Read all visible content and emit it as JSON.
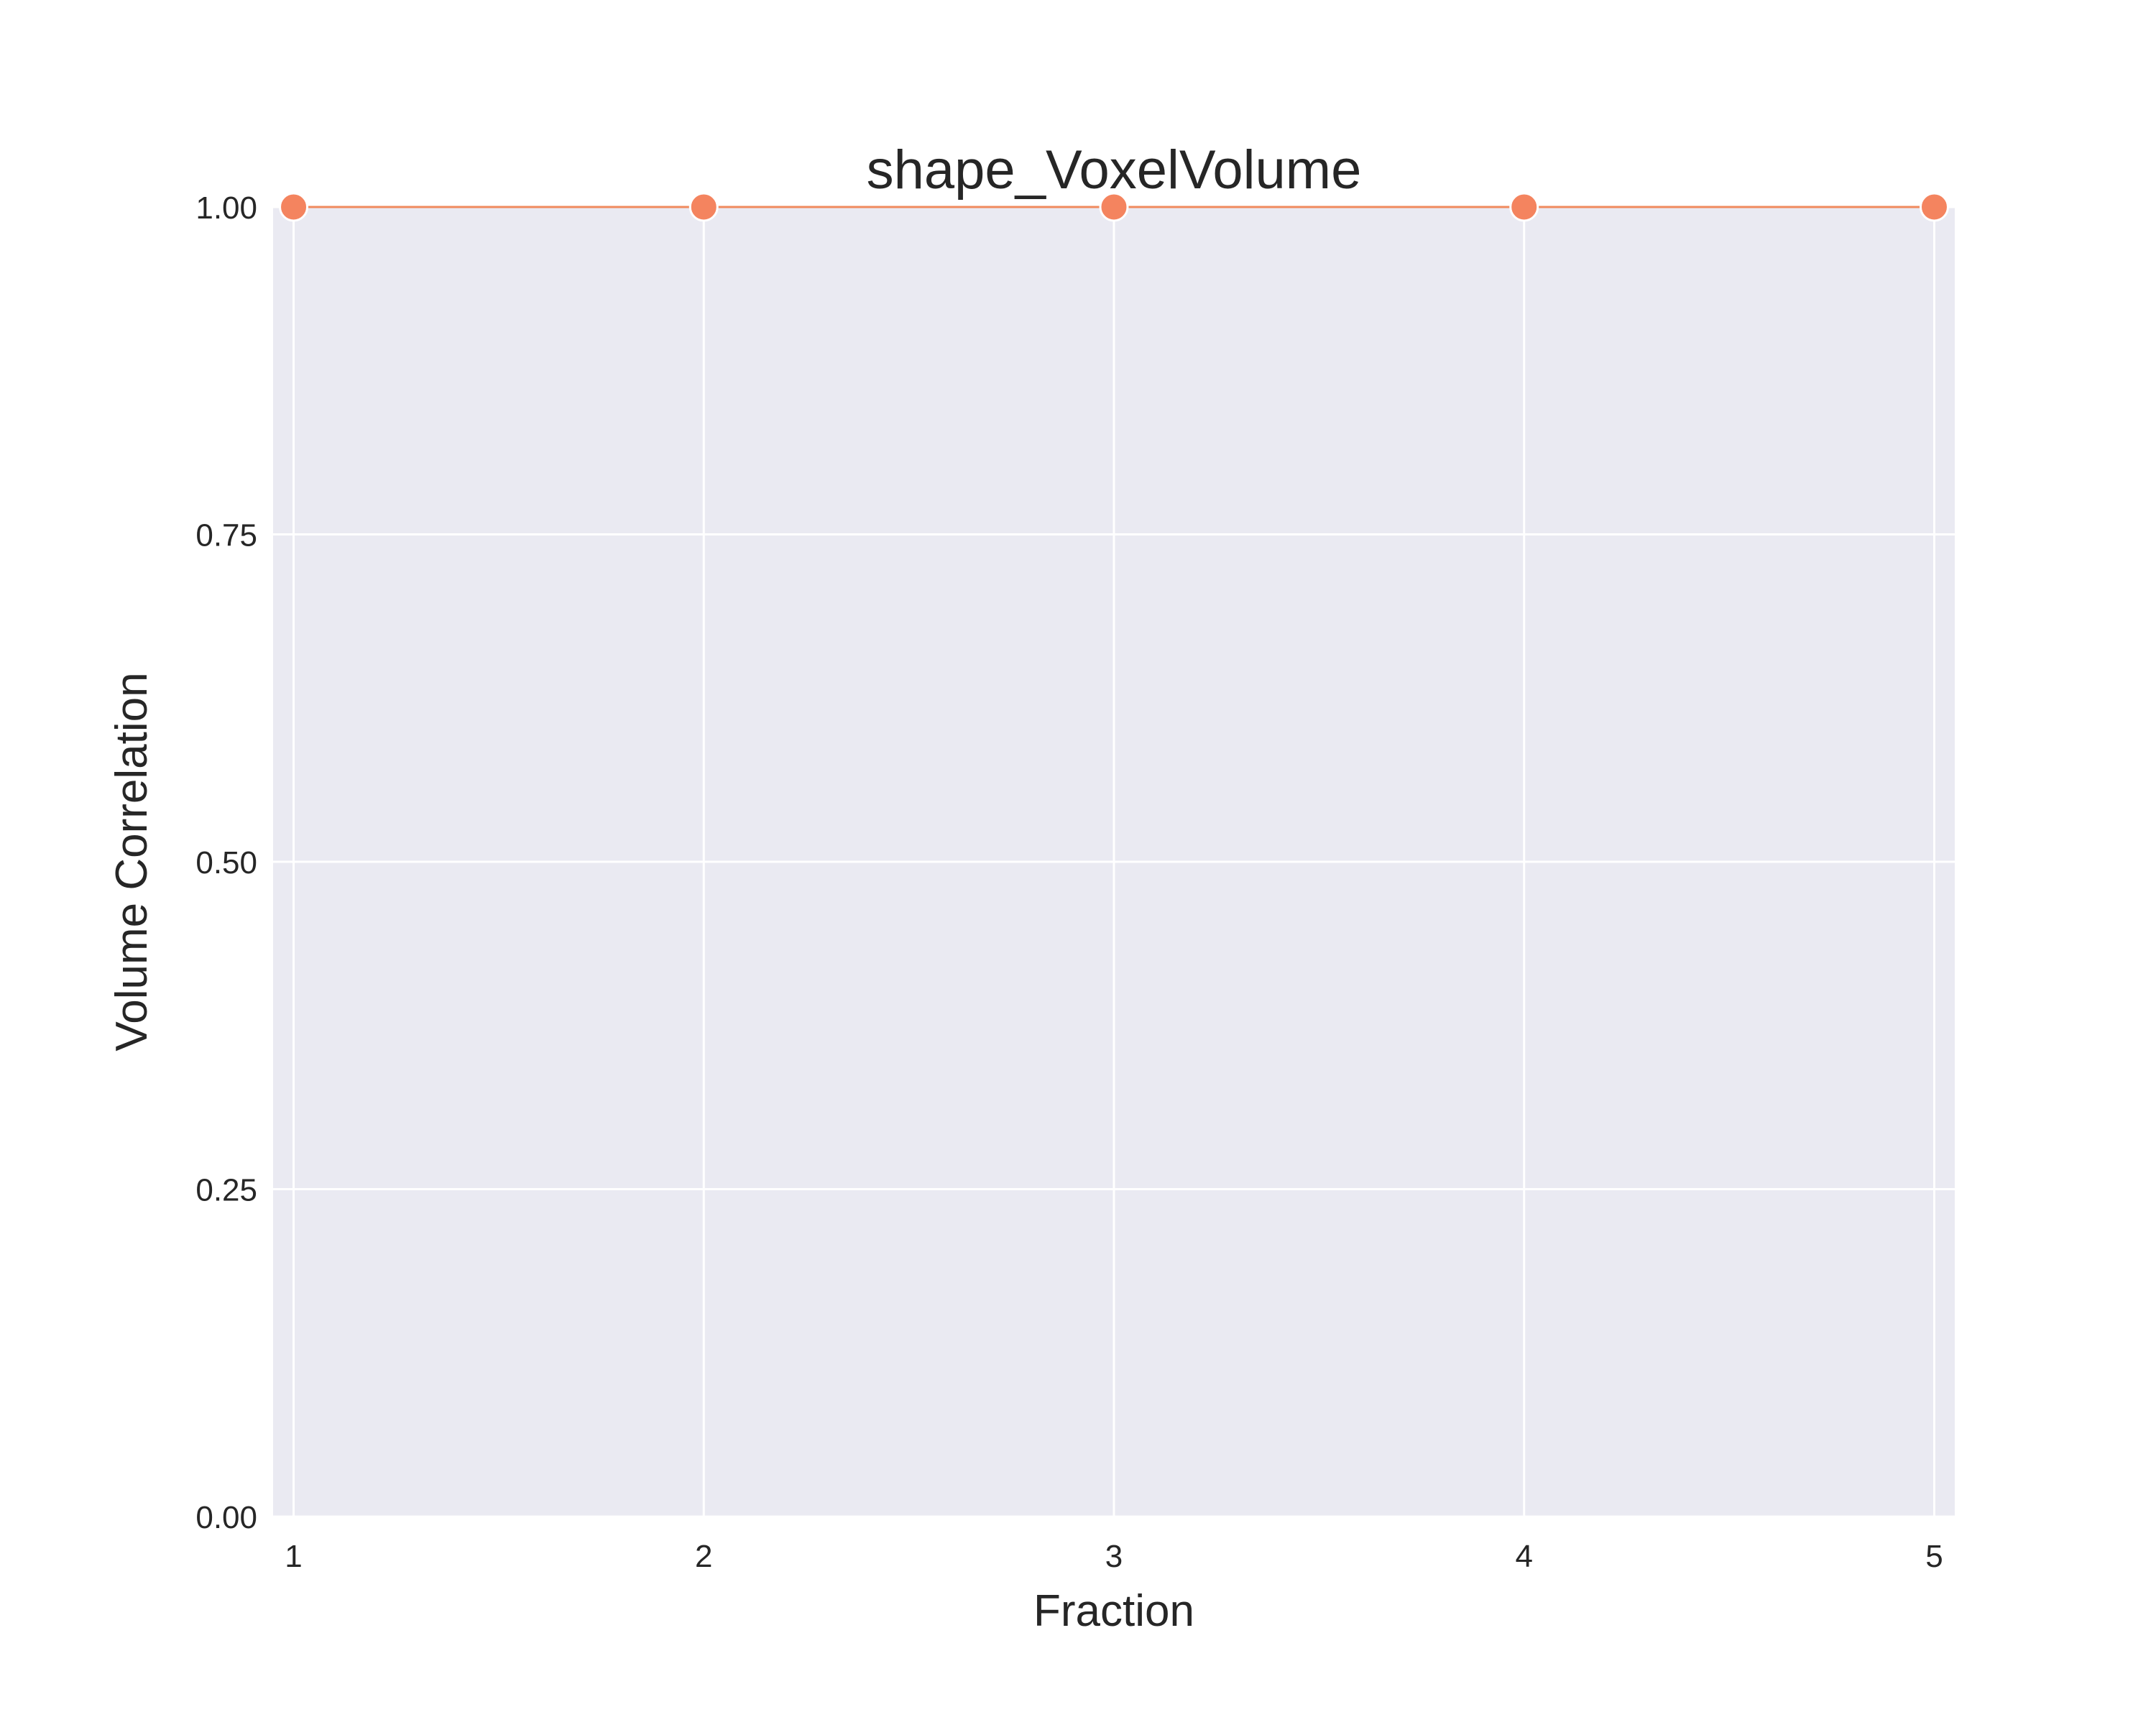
{
  "chart_data": {
    "type": "line",
    "title": "shape_VoxelVolume",
    "xlabel": "Fraction",
    "ylabel": "Volume Correlation",
    "x": [
      1,
      2,
      3,
      4,
      5
    ],
    "series": [
      {
        "values": [
          1.0,
          1.0,
          1.0,
          1.0,
          1.0
        ]
      }
    ],
    "xticks": [
      "1",
      "2",
      "3",
      "4",
      "5"
    ],
    "yticks": [
      "0.00",
      "0.25",
      "0.50",
      "0.75",
      "1.00"
    ],
    "ytick_values": [
      0,
      0.25,
      0.5,
      0.75,
      1.0
    ],
    "xlim": [
      0.95,
      5.05
    ],
    "ylim": [
      0,
      1.0
    ],
    "grid": true,
    "colors": {
      "background": "#EAEAF2",
      "grid": "#FFFFFF",
      "line": "#F08A5D",
      "marker": "#F4845F",
      "marker_edge": "#FFFFFF"
    }
  }
}
